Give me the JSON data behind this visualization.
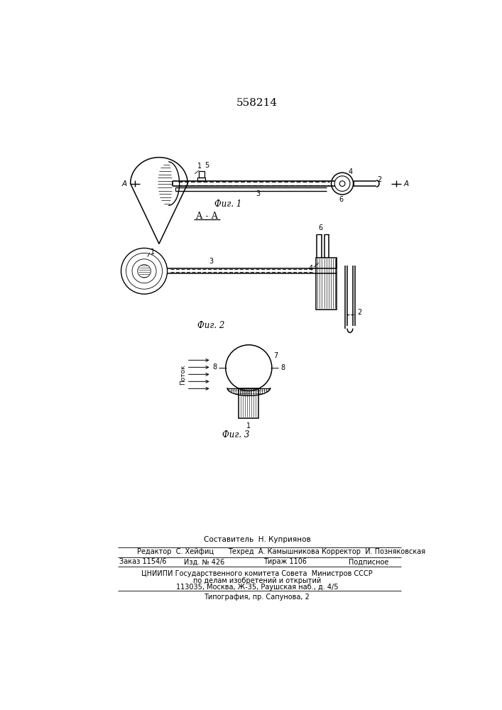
{
  "title": "558214",
  "background_color": "#ffffff",
  "fig1_caption": "Фиг. 1",
  "fig2_caption": "Фиг. 2",
  "fig3_caption": "Фиг. 3",
  "section_label": "А - А",
  "footer_line1": "Составитель  Н. Куприянов",
  "footer_col1_row1": "Редактор  С. Хейфиц",
  "footer_col2_row1": "Техред  А. Камышникова",
  "footer_col3_row1": "Корректор  И. Позняковская",
  "footer_col1_row2": "Заказ 1154/6",
  "footer_col2_row2": "Изд. № 426",
  "footer_col3_row2": "Тираж 1106",
  "footer_col4_row2": "Подписное",
  "footer_row3": "ЦНИИПИ Государственного комитета Совета  Министров СССР",
  "footer_row4": "по делам изобретений и открытий",
  "footer_row5": "113035, Москва, Ж-35, Раушская наб., д. 4/5",
  "footer_row6": "Типография, пр. Сапунова, 2",
  "text_color": "#000000",
  "line_color": "#000000"
}
